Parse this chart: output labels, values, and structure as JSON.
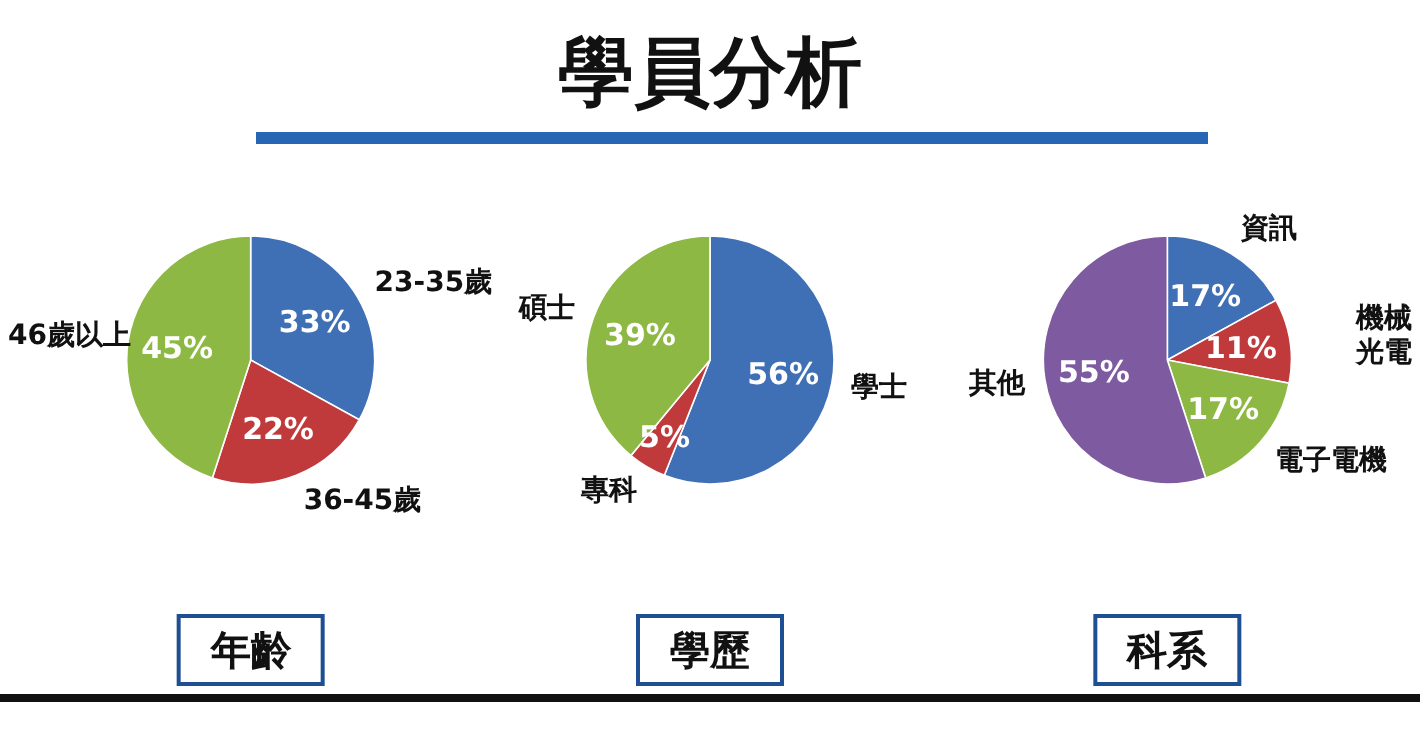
{
  "chart_data": [
    {
      "type": "other",
      "title": "學員分析"
    },
    {
      "type": "pie",
      "xlabel": "年齡",
      "categories": [
        "23-35歲",
        "36-45歲",
        "46歲以上"
      ],
      "values": [
        33,
        22,
        45
      ],
      "value_labels": [
        "33%",
        "22%",
        "45%"
      ],
      "colors": [
        "#3f6fb5",
        "#c0393b",
        "#8db843"
      ]
    },
    {
      "type": "pie",
      "xlabel": "學歷",
      "categories": [
        "學士",
        "專科",
        "碩士"
      ],
      "values": [
        56,
        5,
        39
      ],
      "value_labels": [
        "56%",
        "5%",
        "39%"
      ],
      "colors": [
        "#3f6fb5",
        "#c0393b",
        "#8db843"
      ]
    },
    {
      "type": "pie",
      "xlabel": "科系",
      "categories": [
        "資訊",
        "機械光電",
        "電子電機",
        "其他"
      ],
      "values": [
        17,
        11,
        17,
        55
      ],
      "value_labels": [
        "17%",
        "11%",
        "17%",
        "55%"
      ],
      "colors": [
        "#3f6fb5",
        "#c0393b",
        "#8db843",
        "#7e5aa1"
      ]
    }
  ]
}
